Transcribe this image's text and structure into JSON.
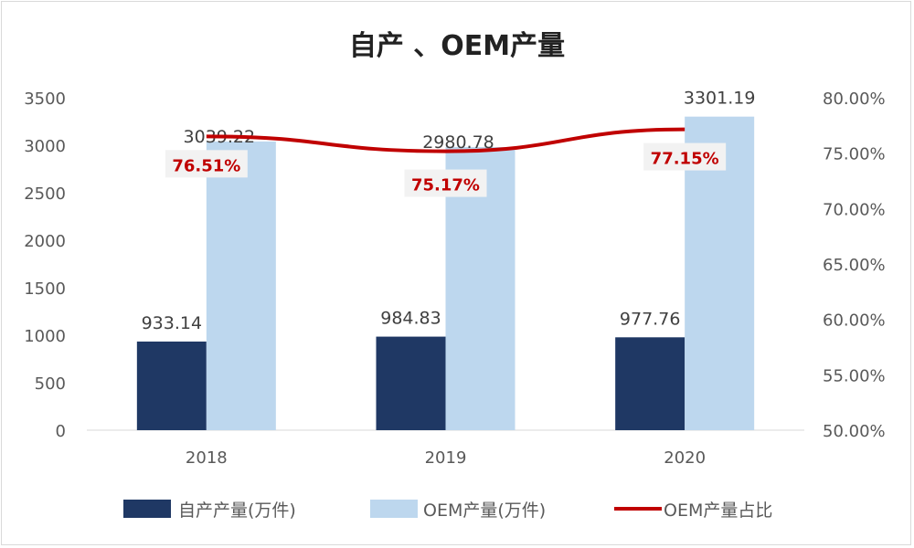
{
  "chart_data": {
    "type": "bar",
    "title": "自产 、OEM产量",
    "categories": [
      "2018",
      "2019",
      "2020"
    ],
    "series": [
      {
        "name": "自产产量(万件)",
        "type": "bar",
        "axis": "left",
        "color": "#1f3864",
        "values": [
          933.14,
          984.83,
          977.76
        ],
        "labels": [
          "933.14",
          "984.83",
          "977.76"
        ]
      },
      {
        "name": "OEM产量(万件)",
        "type": "bar",
        "axis": "left",
        "color": "#bdd7ee",
        "values": [
          3039.22,
          2980.78,
          3301.19
        ],
        "labels": [
          "3039.22",
          "2980.78",
          "3301.19"
        ]
      },
      {
        "name": "OEM产量占比",
        "type": "line",
        "axis": "right",
        "color": "#c00000",
        "values": [
          76.51,
          75.17,
          77.15
        ],
        "labels": [
          "76.51%",
          "75.17%",
          "77.15%"
        ]
      }
    ],
    "y_left": {
      "range": [
        0,
        3500
      ],
      "ticks": [
        "0",
        "500",
        "1000",
        "1500",
        "2000",
        "2500",
        "3000",
        "3500"
      ]
    },
    "y_right": {
      "range": [
        50,
        80
      ],
      "ticks": [
        "50.00%",
        "55.00%",
        "60.00%",
        "65.00%",
        "70.00%",
        "75.00%",
        "80.00%"
      ]
    },
    "grid": false,
    "legend": "bottom"
  }
}
